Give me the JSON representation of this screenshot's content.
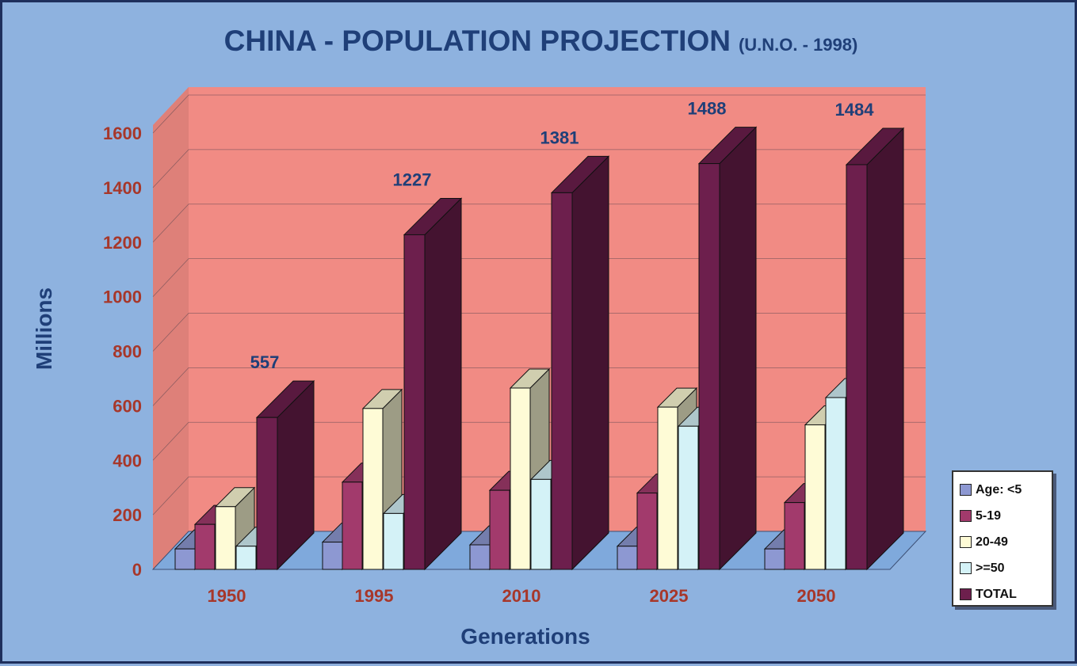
{
  "title": {
    "main": "CHINA - POPULATION PROJECTION",
    "sub": "(U.N.O. - 1998)"
  },
  "colors": {
    "age_lt5": "#8d98d2",
    "age_5_19": "#a23a6c",
    "age_20_49": "#fefbd6",
    "age_ge50": "#d4f2f7",
    "total": "#6d1f4d",
    "wall": "#f18b84",
    "floor": "#7fa9dc",
    "axis_text": "#a7372a",
    "title_text": "#1f3f78"
  },
  "chart_data": {
    "type": "bar",
    "title": "CHINA - POPULATION PROJECTION (U.N.O. - 1998)",
    "xlabel": "Generations",
    "ylabel": "Millions",
    "ylim": [
      0,
      1600
    ],
    "yticks": [
      "0",
      "200",
      "400",
      "600",
      "800",
      "1000",
      "1200",
      "1400",
      "1600"
    ],
    "categories": [
      "1950",
      "1995",
      "2010",
      "2025",
      "2050"
    ],
    "series": [
      {
        "name": "Age: <5",
        "values": [
          75,
          100,
          90,
          85,
          75
        ]
      },
      {
        "name": "5-19",
        "values": [
          165,
          320,
          290,
          280,
          245
        ]
      },
      {
        "name": "20-49",
        "values": [
          230,
          590,
          665,
          595,
          530
        ]
      },
      {
        "name": ">=50",
        "values": [
          85,
          205,
          330,
          525,
          630
        ]
      },
      {
        "name": "TOTAL",
        "values": [
          557,
          1227,
          1381,
          1488,
          1484
        ]
      }
    ],
    "total_labels": [
      "557",
      "1227",
      "1381",
      "1488",
      "1484"
    ],
    "legend_position": "right",
    "grid": true
  }
}
